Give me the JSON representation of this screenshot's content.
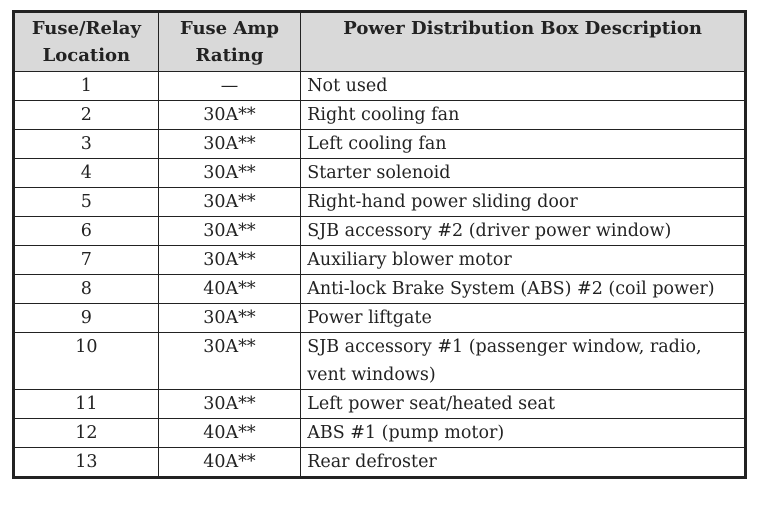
{
  "table": {
    "headers": [
      "Fuse/Relay Location",
      "Fuse Amp Rating",
      "Power Distribution Box Description"
    ],
    "header_lines": [
      [
        "Fuse/Relay",
        "Location"
      ],
      [
        "Fuse Amp",
        "Rating"
      ],
      [
        "Power Distribution Box Description"
      ]
    ],
    "rows": [
      {
        "location": "1",
        "rating": "—",
        "description": "Not used"
      },
      {
        "location": "2",
        "rating": "30A**",
        "description": "Right cooling fan"
      },
      {
        "location": "3",
        "rating": "30A**",
        "description": "Left cooling fan"
      },
      {
        "location": "4",
        "rating": "30A**",
        "description": "Starter solenoid"
      },
      {
        "location": "5",
        "rating": "30A**",
        "description": "Right-hand power sliding door"
      },
      {
        "location": "6",
        "rating": "30A**",
        "description": "SJB accessory #2 (driver power window)"
      },
      {
        "location": "7",
        "rating": "30A**",
        "description": "Auxiliary blower motor"
      },
      {
        "location": "8",
        "rating": "40A**",
        "description": "Anti-lock Brake System (ABS) #2 (coil power)"
      },
      {
        "location": "9",
        "rating": "30A**",
        "description": "Power liftgate"
      },
      {
        "location": "10",
        "rating": "30A**",
        "description": "SJB accessory #1 (passenger window, radio, vent windows)"
      },
      {
        "location": "11",
        "rating": "30A**",
        "description": "Left power seat/heated seat"
      },
      {
        "location": "12",
        "rating": "40A**",
        "description": "ABS #1 (pump motor)"
      },
      {
        "location": "13",
        "rating": "40A**",
        "description": "Rear defroster"
      }
    ]
  }
}
